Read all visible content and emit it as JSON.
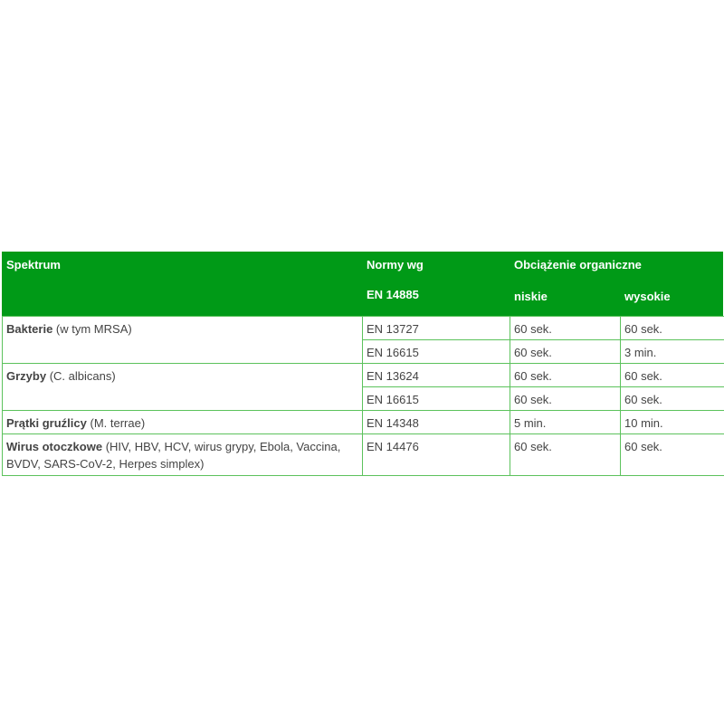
{
  "header": {
    "spectrum": "Spektrum",
    "norms_line1": "Normy wg",
    "norms_line2": "EN 14885",
    "organic_load": "Obciążenie organiczne",
    "low": "niskie",
    "high": "wysokie"
  },
  "rows": [
    {
      "name_bold": "Bakterie",
      "name_rest": " (w tym MRSA)",
      "entries": [
        {
          "norm": "EN 13727",
          "low": "60 sek.",
          "high": "60 sek."
        },
        {
          "norm": "EN 16615",
          "low": "60 sek.",
          "high": "3 min."
        }
      ]
    },
    {
      "name_bold": "Grzyby",
      "name_rest": " (C. albicans)",
      "entries": [
        {
          "norm": "EN 13624",
          "low": "60 sek.",
          "high": "60 sek."
        },
        {
          "norm": "EN 16615",
          "low": "60 sek.",
          "high": "60 sek."
        }
      ]
    },
    {
      "name_bold": "Prątki gruźlicy",
      "name_rest": " (M. terrae)",
      "entries": [
        {
          "norm": "EN 14348",
          "low": "5 min.",
          "high": "10 min."
        }
      ]
    },
    {
      "name_bold": "Wirus otoczkowe",
      "name_rest": " (HIV, HBV, HCV, wirus grypy, Ebola, Vaccina, BVDV, SARS-CoV-2, Herpes simplex)",
      "entries": [
        {
          "norm": "EN 14476",
          "low": "60 sek.",
          "high": "60 sek."
        }
      ]
    }
  ],
  "colors": {
    "header_bg": "#009a17",
    "border": "#5cc25c",
    "text": "#444444"
  }
}
